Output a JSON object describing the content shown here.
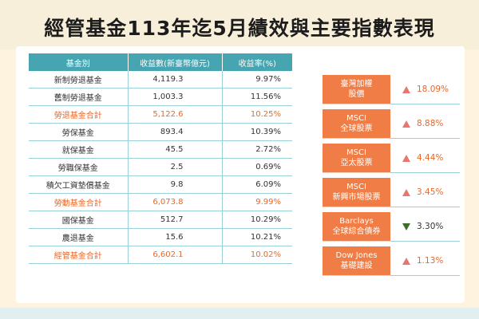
{
  "title": "經管基金113年迄5月績效與主要指數表現",
  "colors": {
    "background": "#fdf3de",
    "header_teal": "#46a5b1",
    "accent_orange": "#e8682a",
    "index_box": "#f07d45",
    "up_arrow": "#e8766f",
    "down_arrow": "#3b6e2a"
  },
  "table": {
    "headers": [
      "基金別",
      "收益數(新臺幣億元)",
      "收益率(%)"
    ],
    "rows": [
      {
        "name": "新制勞退基金",
        "income": "4,119.3",
        "rate": "9.97%",
        "total": false
      },
      {
        "name": "舊制勞退基金",
        "income": "1,003.3",
        "rate": "11.56%",
        "total": false
      },
      {
        "name": "勞退基金合計",
        "income": "5,122.6",
        "rate": "10.25%",
        "total": true
      },
      {
        "name": "勞保基金",
        "income": "893.4",
        "rate": "10.39%",
        "total": false
      },
      {
        "name": "就保基金",
        "income": "45.5",
        "rate": "2.72%",
        "total": false
      },
      {
        "name": "勞職保基金",
        "income": "2.5",
        "rate": "0.69%",
        "total": false
      },
      {
        "name": "積欠工資墊償基金",
        "income": "9.8",
        "rate": "6.09%",
        "total": false
      },
      {
        "name": "勞動基金合計",
        "income": "6,073.8",
        "rate": "9.99%",
        "total": true
      },
      {
        "name": "國保基金",
        "income": "512.7",
        "rate": "10.29%",
        "total": false
      },
      {
        "name": "農退基金",
        "income": "15.6",
        "rate": "10.21%",
        "total": false
      },
      {
        "name": "經管基金合計",
        "income": "6,602.1",
        "rate": "10.02%",
        "total": true
      }
    ]
  },
  "indices": [
    {
      "line1": "臺灣加權",
      "line2": "股價",
      "change": "18.09%",
      "direction": "up"
    },
    {
      "line1": "MSCI",
      "line2": "全球股票",
      "change": "8.88%",
      "direction": "up"
    },
    {
      "line1": "MSCI",
      "line2": "亞太股票",
      "change": "4.44%",
      "direction": "up"
    },
    {
      "line1": "MSCI",
      "line2": "新興市場股票",
      "change": "3.45%",
      "direction": "up"
    },
    {
      "line1": "Barclays",
      "line2": "全球綜合債券",
      "change": "3.30%",
      "direction": "down"
    },
    {
      "line1": "Dow Jones",
      "line2": "基礎建設",
      "change": "1.13%",
      "direction": "up"
    }
  ]
}
